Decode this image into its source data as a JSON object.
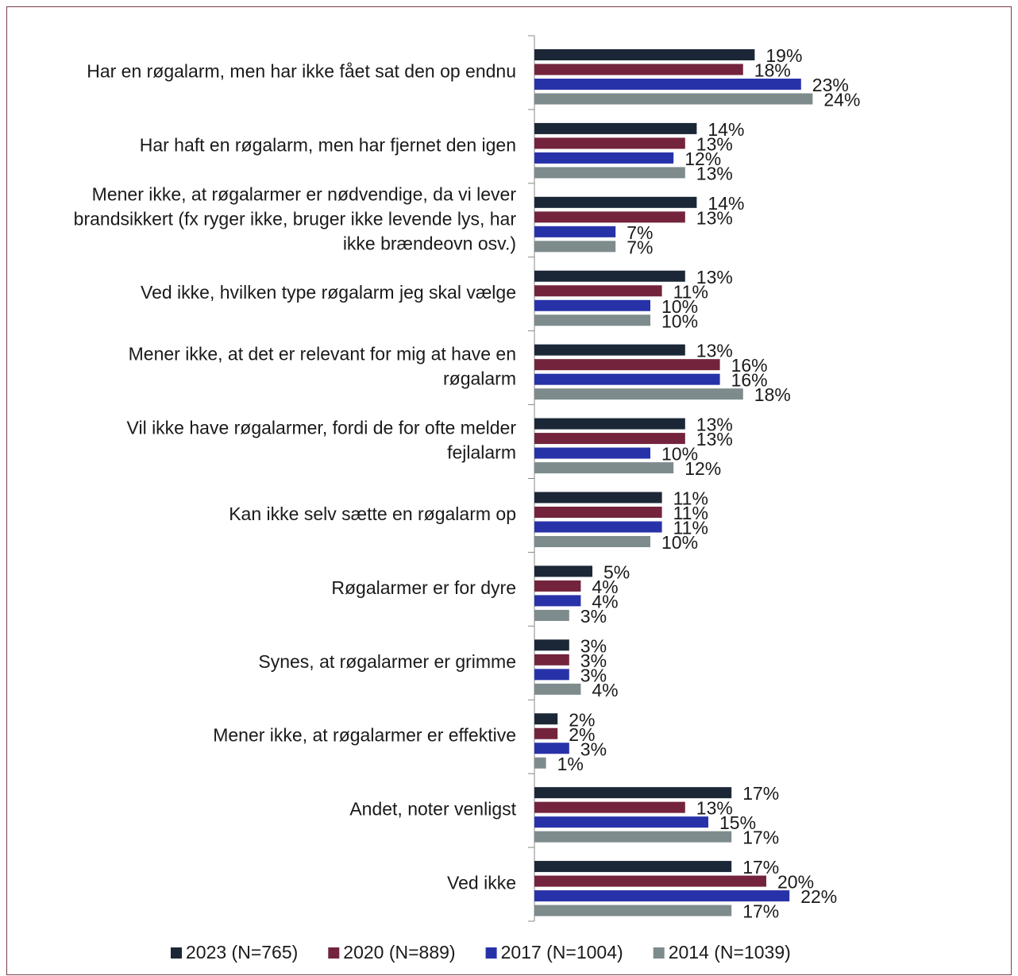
{
  "chart_data": {
    "type": "bar",
    "orientation": "horizontal",
    "categories": [
      "Har en røgalarm, men har ikke fået sat den op endnu",
      "Har haft en røgalarm, men har fjernet den igen",
      "Mener ikke, at røgalarmer er nødvendige, da vi lever brandsikkert (fx ryger ikke, bruger ikke levende lys, har ikke brændeovn osv.)",
      "Ved ikke, hvilken type røgalarm jeg skal vælge",
      "Mener ikke, at det er relevant for mig at have en røgalarm",
      "Vil ikke have røgalarmer, fordi de for ofte melder fejlalarm",
      "Kan ikke selv sætte en røgalarm op",
      "Røgalarmer er for dyre",
      "Synes, at røgalarmer er grimme",
      "Mener ikke, at røgalarmer er effektive",
      "Andet, noter venligst",
      "Ved ikke"
    ],
    "series": [
      {
        "name": "2023 (N=765)",
        "color": "#1b2737",
        "values": [
          19,
          14,
          14,
          13,
          13,
          13,
          11,
          5,
          3,
          2,
          17,
          17
        ],
        "value_labels": [
          "19%",
          "14%",
          "14%",
          "13%",
          "13%",
          "13%",
          "11%",
          "5%",
          "3%",
          "2%",
          "17%",
          "17%"
        ]
      },
      {
        "name": "2020 (N=889)",
        "color": "#73243c",
        "values": [
          18,
          13,
          13,
          11,
          16,
          13,
          11,
          4,
          3,
          2,
          13,
          20
        ],
        "value_labels": [
          "18%",
          "13%",
          "13%",
          "11%",
          "16%",
          "13%",
          "11%",
          "4%",
          "3%",
          "2%",
          "13%",
          "20%"
        ]
      },
      {
        "name": "2017 (N=1004)",
        "color": "#2832a8",
        "values": [
          23,
          12,
          7,
          10,
          16,
          10,
          11,
          4,
          3,
          3,
          15,
          22
        ],
        "value_labels": [
          "23%",
          "12%",
          "7%",
          "10%",
          "16%",
          "10%",
          "11%",
          "4%",
          "3%",
          "3%",
          "15%",
          "22%"
        ]
      },
      {
        "name": "2014 (N=1039)",
        "color": "#7d8b8d",
        "values": [
          24,
          13,
          7,
          10,
          18,
          12,
          10,
          3,
          4,
          1,
          17,
          17
        ],
        "value_labels": [
          "24%",
          "13%",
          "7%",
          "10%",
          "18%",
          "12%",
          "10%",
          "3%",
          "4%",
          "1%",
          "17%",
          "17%"
        ]
      }
    ],
    "xlim": [
      0,
      40
    ],
    "legend": "bottom"
  }
}
